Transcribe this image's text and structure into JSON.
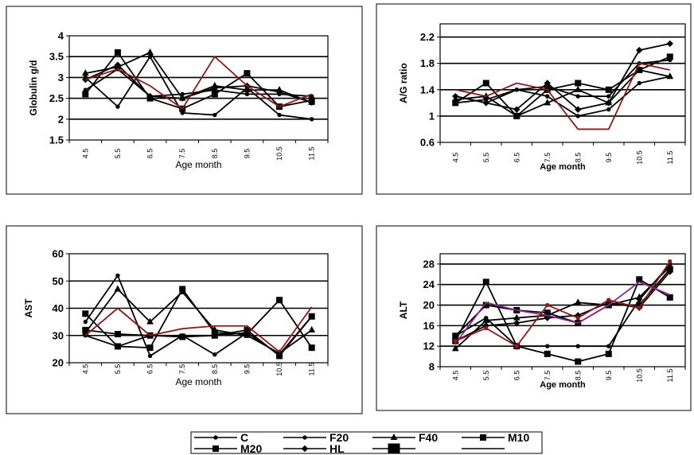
{
  "colors": {
    "black": "#000000",
    "darkred": "#8b1a1a",
    "purple": "#8b2a8b"
  },
  "legend": {
    "items": [
      {
        "label": "C",
        "marker": "dot"
      },
      {
        "label": "F20",
        "marker": "dot"
      },
      {
        "label": "F40",
        "marker": "triangle"
      },
      {
        "label": "M10",
        "marker": "square"
      },
      {
        "label": "M20",
        "marker": "square"
      },
      {
        "label": "HL",
        "marker": "diamond"
      },
      {
        "label": "",
        "marker": "bigsquare"
      },
      {
        "label": "",
        "marker": "none"
      }
    ]
  },
  "chart_data": [
    {
      "type": "line",
      "ylabel": "Globulin g/d",
      "xlabel": "Age month",
      "xlabel_bold": false,
      "categories": [
        "4.5",
        "5.5",
        "6.5",
        "7.5",
        "8.5",
        "9.5",
        "10.5",
        "11.5"
      ],
      "ylim": [
        1.5,
        4
      ],
      "yticks": [
        "1.5",
        "2",
        "2.5",
        "3",
        "3.5",
        "4"
      ],
      "yticks_values": [
        1.5,
        2,
        2.5,
        3,
        3.5,
        4
      ],
      "grid": true,
      "series": [
        {
          "values": [
            3.0,
            2.3,
            3.5,
            2.15,
            2.1,
            2.75,
            2.1,
            2.0
          ],
          "color": "black",
          "marker": "dot"
        },
        {
          "values": [
            3.1,
            3.25,
            3.6,
            2.5,
            2.8,
            2.7,
            2.7,
            2.4
          ],
          "color": "black",
          "marker": "triangle"
        },
        {
          "values": [
            2.6,
            3.6,
            2.5,
            2.25,
            2.6,
            3.1,
            2.3,
            2.45
          ],
          "color": "black",
          "marker": "square"
        },
        {
          "values": [
            2.95,
            3.3,
            2.55,
            2.5,
            2.75,
            2.8,
            2.65,
            2.4
          ],
          "color": "black",
          "marker": "diamond"
        },
        {
          "values": [
            2.7,
            3.2,
            2.55,
            2.6,
            2.7,
            2.6,
            2.6,
            2.55
          ],
          "color": "black",
          "marker": "dot"
        },
        {
          "values": [
            2.95,
            3.2,
            2.8,
            2.25,
            3.5,
            2.8,
            2.3,
            2.6
          ],
          "color": "darkred",
          "marker": "none"
        }
      ]
    },
    {
      "type": "line",
      "ylabel": "A/G ratio",
      "xlabel": "Age month",
      "xlabel_bold": true,
      "categories": [
        "4.5",
        "5.5",
        "6.5",
        "7.5",
        "8.5",
        "9.5",
        "10.5",
        "11.5"
      ],
      "ylim": [
        0.6,
        2.4
      ],
      "yticks": [
        "0.6",
        "1",
        "1.4",
        "1.8",
        "2.2"
      ],
      "yticks_values": [
        0.6,
        1.0,
        1.4,
        1.8,
        2.2
      ],
      "grid": true,
      "series": [
        {
          "values": [
            1.3,
            1.2,
            1.1,
            1.5,
            1.1,
            1.2,
            2.0,
            2.1
          ],
          "color": "black",
          "marker": "diamond"
        },
        {
          "values": [
            1.25,
            1.3,
            1.0,
            1.2,
            1.4,
            1.2,
            1.7,
            1.6
          ],
          "color": "black",
          "marker": "triangle"
        },
        {
          "values": [
            1.2,
            1.5,
            1.0,
            1.4,
            1.5,
            1.4,
            1.7,
            1.9
          ],
          "color": "black",
          "marker": "square"
        },
        {
          "values": [
            1.3,
            1.2,
            1.4,
            1.3,
            1.0,
            1.1,
            1.5,
            1.6
          ],
          "color": "black",
          "marker": "dot"
        },
        {
          "values": [
            1.2,
            1.25,
            1.4,
            1.45,
            1.3,
            1.3,
            1.8,
            1.85
          ],
          "color": "black",
          "marker": "dot"
        },
        {
          "values": [
            1.4,
            1.3,
            1.5,
            1.4,
            0.8,
            0.8,
            1.8,
            1.7
          ],
          "color": "darkred",
          "marker": "none"
        }
      ]
    },
    {
      "type": "line",
      "ylabel": "AST",
      "xlabel": "Age month",
      "xlabel_bold": false,
      "categories": [
        "4.5",
        "5.5",
        "6.5",
        "7.5",
        "8.5",
        "9.5",
        "10.5",
        "11.5"
      ],
      "ylim": [
        20,
        60
      ],
      "yticks": [
        "20",
        "30",
        "40",
        "50",
        "60"
      ],
      "yticks_values": [
        20,
        30,
        40,
        50,
        60
      ],
      "grid": true,
      "series": [
        {
          "values": [
            35,
            52,
            22.5,
            30,
            23,
            31,
            23,
            37
          ],
          "color": "black",
          "marker": "dot"
        },
        {
          "values": [
            31,
            47,
            35,
            46,
            32,
            30,
            23.5,
            32
          ],
          "color": "black",
          "marker": "triangle"
        },
        {
          "values": [
            38,
            26,
            25.5,
            47,
            31,
            30.5,
            43,
            25.5
          ],
          "color": "black",
          "marker": "square"
        },
        {
          "values": [
            32,
            30.5,
            30,
            29.5,
            30,
            32,
            22.5,
            37
          ],
          "color": "black",
          "marker": "square"
        },
        {
          "values": [
            30,
            26,
            30,
            30,
            30,
            31,
            23,
            37
          ],
          "color": "black",
          "marker": "dot"
        },
        {
          "values": [
            30,
            40,
            30,
            32.5,
            33.5,
            33.5,
            24,
            40.5
          ],
          "color": "darkred",
          "marker": "none"
        }
      ]
    },
    {
      "type": "line",
      "ylabel": "ALT",
      "xlabel": "Age month",
      "xlabel_bold": true,
      "categories": [
        "4.5",
        "5.5",
        "6.5",
        "7.5",
        "8.5",
        "9.5",
        "10.5",
        "11.5"
      ],
      "ylim": [
        8,
        30
      ],
      "yticks": [
        "8",
        "12",
        "16",
        "20",
        "24",
        "28"
      ],
      "yticks_values": [
        8,
        12,
        16,
        20,
        24,
        28
      ],
      "grid": true,
      "series": [
        {
          "values": [
            14,
            17.5,
            12,
            12,
            12,
            12,
            21,
            28
          ],
          "color": "black",
          "marker": "dot"
        },
        {
          "values": [
            11.5,
            17,
            17.5,
            18,
            20.5,
            20,
            21.5,
            27.5
          ],
          "color": "black",
          "marker": "triangle"
        },
        {
          "values": [
            13,
            24.5,
            12,
            10.5,
            9,
            10.5,
            25,
            21.5
          ],
          "color": "black",
          "marker": "square"
        },
        {
          "values": [
            14,
            20,
            19,
            18.5,
            16.5,
            20,
            20,
            27
          ],
          "color": "black",
          "marker": "square"
        },
        {
          "values": [
            13,
            16,
            16.5,
            17.5,
            18,
            20.5,
            19.5,
            26.5
          ],
          "color": "black",
          "marker": "diamond"
        },
        {
          "values": [
            12.5,
            20.5,
            19,
            18,
            16.5,
            20,
            24.5,
            22
          ],
          "color": "purple",
          "marker": "none"
        },
        {
          "values": [
            13,
            15.5,
            12,
            20,
            17.5,
            21,
            19.5,
            28.5
          ],
          "color": "darkred",
          "marker": "dot"
        }
      ]
    }
  ]
}
